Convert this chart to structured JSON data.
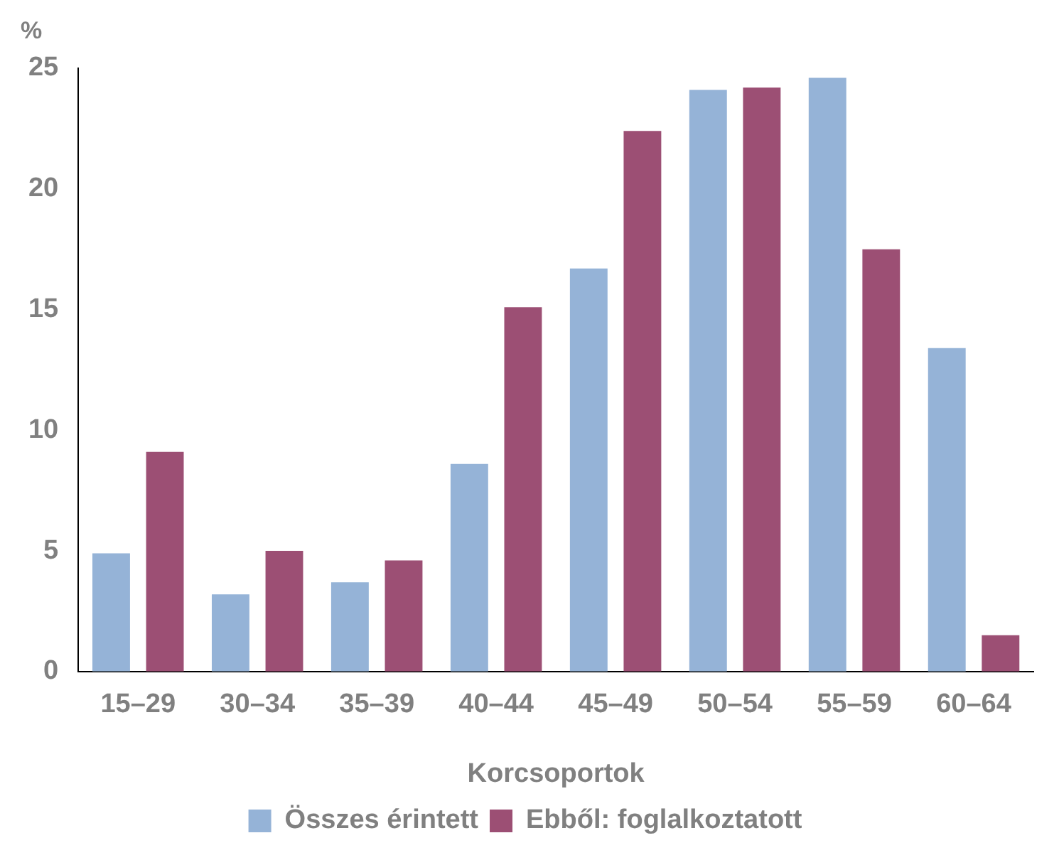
{
  "chart_data": {
    "type": "bar",
    "xlabel": "Korcsoportok",
    "ylabel": "%",
    "categories": [
      "15–29",
      "30–34",
      "35–39",
      "40–44",
      "45–49",
      "50–54",
      "55–59",
      "60–64"
    ],
    "series": [
      {
        "name": "Összes érintett",
        "color": "#95b3d7",
        "values": [
          4.9,
          3.2,
          3.7,
          8.6,
          16.7,
          24.1,
          24.6,
          13.4
        ]
      },
      {
        "name": "Ebből: foglalkoztatott",
        "color": "#9c4f74",
        "values": [
          9.1,
          5.0,
          4.6,
          15.1,
          22.4,
          24.2,
          17.5,
          1.5
        ]
      }
    ],
    "ylim": [
      0,
      25
    ],
    "yticks": [
      0,
      5,
      10,
      15,
      20,
      25
    ],
    "grid": false,
    "legend": "bottom"
  }
}
